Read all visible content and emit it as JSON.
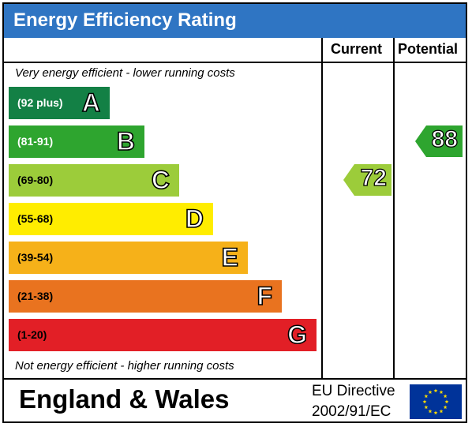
{
  "title": "Energy Efficiency Rating",
  "columns": {
    "current": "Current",
    "potential": "Potential"
  },
  "top_note": "Very energy efficient - lower running costs",
  "bottom_note": "Not energy efficient - higher running costs",
  "bands": [
    {
      "letter": "A",
      "range": "(92 plus)",
      "color": "#138045",
      "range_color": "#ffffff"
    },
    {
      "letter": "B",
      "range": "(81-91)",
      "color": "#2ea52f",
      "range_color": "#ffffff"
    },
    {
      "letter": "C",
      "range": "(69-80)",
      "color": "#9ccc3a",
      "range_color": "#000000"
    },
    {
      "letter": "D",
      "range": "(55-68)",
      "color": "#ffed00",
      "range_color": "#000000"
    },
    {
      "letter": "E",
      "range": "(39-54)",
      "color": "#f6b119",
      "range_color": "#000000"
    },
    {
      "letter": "F",
      "range": "(21-38)",
      "color": "#e9731f",
      "range_color": "#000000"
    },
    {
      "letter": "G",
      "range": "(1-20)",
      "color": "#e21f26",
      "range_color": "#000000"
    }
  ],
  "ratings": {
    "current": {
      "value": "72",
      "band": "C",
      "color": "#9ccc3a"
    },
    "potential": {
      "value": "88",
      "band": "B",
      "color": "#2ea52f"
    }
  },
  "footer": {
    "region": "England & Wales",
    "directive_line1": "EU Directive",
    "directive_line2": "2002/91/EC",
    "flag_icon": "eu-flag-icon",
    "flag_color": "#003399",
    "star_color": "#ffdd00"
  },
  "chart_data": {
    "type": "bar",
    "title": "Energy Efficiency Rating",
    "categories": [
      "A",
      "B",
      "C",
      "D",
      "E",
      "F",
      "G"
    ],
    "ranges": [
      "(92 plus)",
      "(81-91)",
      "(69-80)",
      "(55-68)",
      "(39-54)",
      "(21-38)",
      "(1-20)"
    ],
    "series": [
      {
        "name": "Current",
        "value": 72,
        "band": "C"
      },
      {
        "name": "Potential",
        "value": 88,
        "band": "B"
      }
    ]
  }
}
